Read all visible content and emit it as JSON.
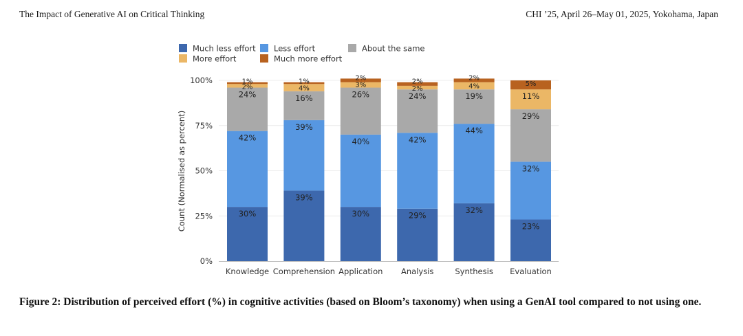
{
  "header": {
    "left": "The Impact of Generative AI on Critical Thinking",
    "right": "CHI ’25, April 26–May 01, 2025, Yokohama, Japan"
  },
  "caption": "Figure 2: Distribution of perceived effort (%) in cognitive activities (based on Bloom’s taxonomy) when using a GenAI tool compared to not using one.",
  "chart_data": {
    "type": "bar",
    "stacked": true,
    "title": "",
    "xlabel": "",
    "ylabel": "Count (Normalised as percent)",
    "ylim": [
      0,
      100
    ],
    "yticks": [
      0,
      25,
      50,
      75,
      100
    ],
    "ytick_labels": [
      "0%",
      "25%",
      "50%",
      "75%",
      "100%"
    ],
    "grid": true,
    "legend_position": "top",
    "categories": [
      "Knowledge",
      "Comprehension",
      "Application",
      "Analysis",
      "Synthesis",
      "Evaluation"
    ],
    "series": [
      {
        "name": "Much less effort",
        "color": "#3d68ad",
        "values": [
          30,
          39,
          30,
          29,
          32,
          23
        ]
      },
      {
        "name": "Less effort",
        "color": "#5797e1",
        "values": [
          42,
          39,
          40,
          42,
          44,
          32
        ]
      },
      {
        "name": "About the same",
        "color": "#a9a9a9",
        "values": [
          24,
          16,
          26,
          24,
          19,
          29
        ]
      },
      {
        "name": "More effort",
        "color": "#ebb766",
        "values": [
          2,
          4,
          3,
          2,
          4,
          11
        ]
      },
      {
        "name": "Much more effort",
        "color": "#b8621f",
        "values": [
          1,
          1,
          2,
          2,
          2,
          5
        ]
      }
    ],
    "value_suffix": "%"
  }
}
